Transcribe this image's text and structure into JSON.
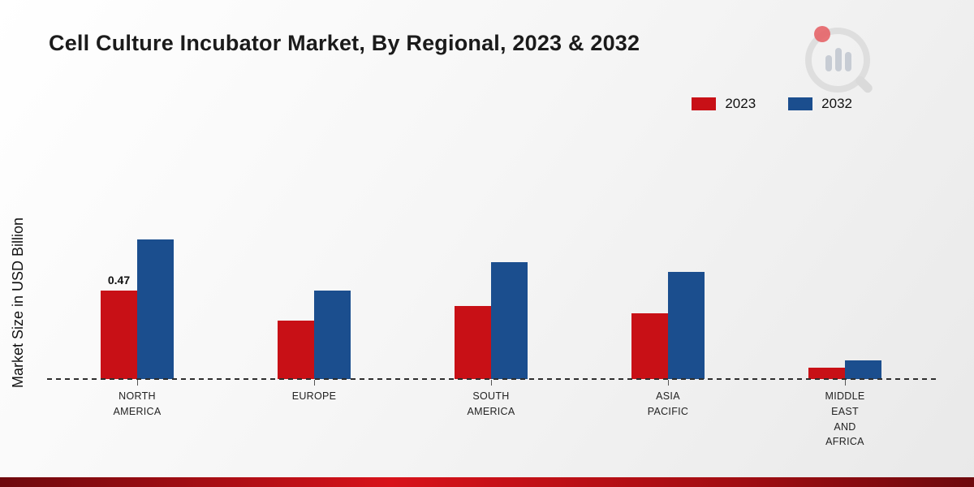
{
  "title": "Cell Culture Incubator Market, By Regional, 2023 & 2032",
  "ylabel": "Market Size in USD Billion",
  "legend": [
    {
      "label": "2023",
      "color": "#c81016"
    },
    {
      "label": "2032",
      "color": "#1b4e8e"
    }
  ],
  "logo_icon": "bar-chart-magnifier-logo",
  "footer": {
    "gradient": [
      "#6e090d",
      "#d8121a",
      "#a30d12",
      "#6e090d"
    ]
  },
  "chart_data": {
    "type": "bar",
    "title": "Cell Culture Incubator Market, By Regional, 2023 & 2032",
    "xlabel": "",
    "ylabel": "Market Size in USD Billion",
    "ylim": [
      0,
      0.8
    ],
    "grid": false,
    "legend_position": "top-right",
    "categories": [
      "NORTH AMERICA",
      "EUROPE",
      "SOUTH AMERICA",
      "ASIA PACIFIC",
      "MIDDLE EAST AND AFRICA"
    ],
    "category_lines": [
      [
        "NORTH",
        "AMERICA"
      ],
      [
        "EUROPE"
      ],
      [
        "SOUTH",
        "AMERICA"
      ],
      [
        "ASIA",
        "PACIFIC"
      ],
      [
        "MIDDLE",
        "EAST",
        "AND",
        "AFRICA"
      ]
    ],
    "series": [
      {
        "name": "2023",
        "color": "#c81016",
        "values": [
          0.47,
          0.31,
          0.39,
          0.35,
          0.06
        ]
      },
      {
        "name": "2032",
        "color": "#1b4e8e",
        "values": [
          0.74,
          0.47,
          0.62,
          0.57,
          0.1
        ]
      }
    ],
    "annotations": [
      {
        "text": "0.47",
        "series": "2023",
        "category_index": 0
      }
    ]
  }
}
